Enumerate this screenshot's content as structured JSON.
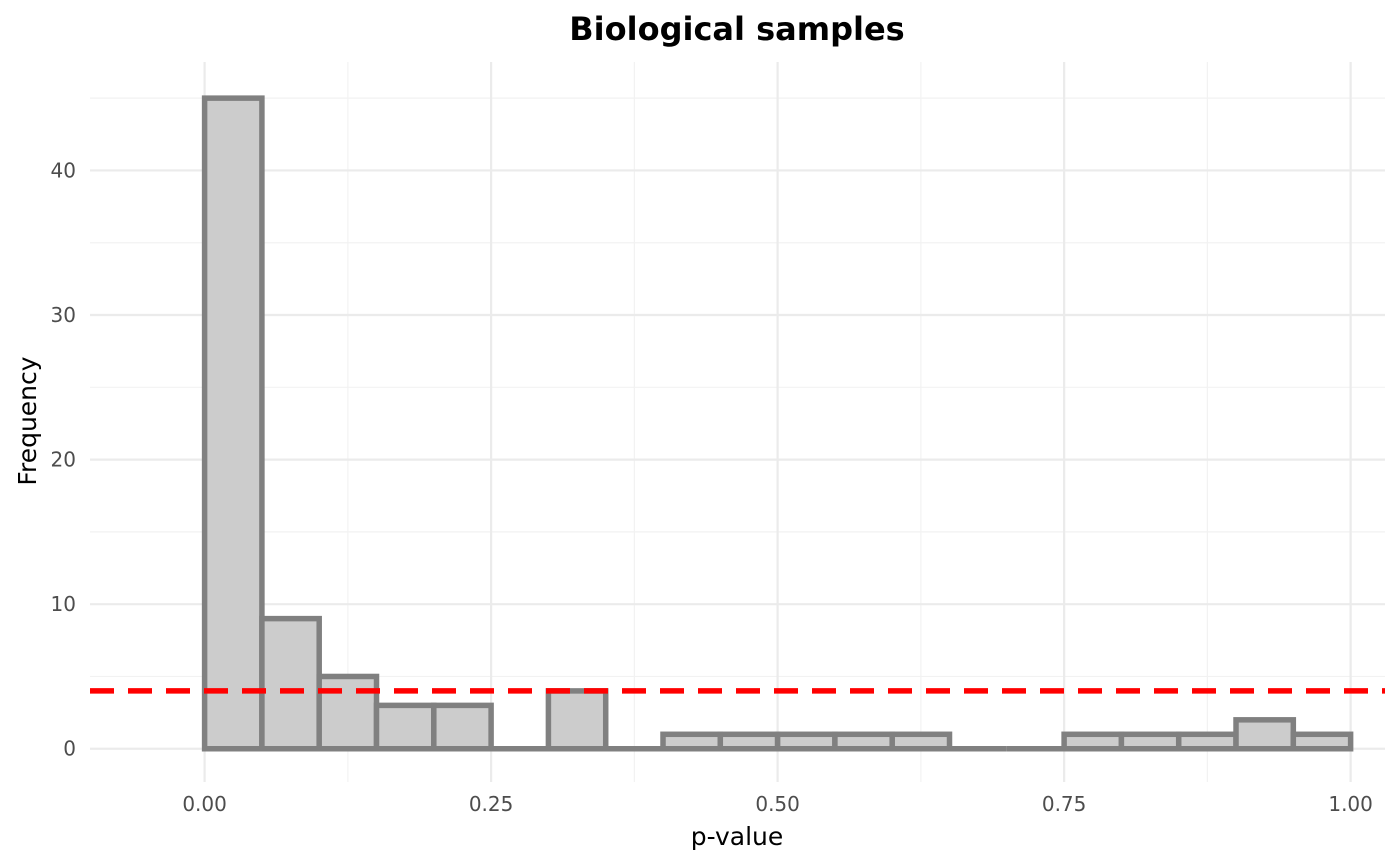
{
  "chart_data": {
    "type": "bar",
    "subtype": "histogram",
    "title": "Biological samples",
    "xlabel": "p-value",
    "ylabel": "Frequency",
    "xlim": [
      -0.1,
      1.03
    ],
    "ylim": [
      -2.3,
      47.5
    ],
    "x_ticks": [
      0.0,
      0.25,
      0.5,
      0.75,
      1.0
    ],
    "x_tick_labels": [
      "0.00",
      "0.25",
      "0.50",
      "0.75",
      "1.00"
    ],
    "y_ticks": [
      0,
      10,
      20,
      30,
      40
    ],
    "y_tick_labels": [
      "0",
      "10",
      "20",
      "30",
      "40"
    ],
    "grid": true,
    "bin_width": 0.05,
    "bins": [
      {
        "start": 0.0,
        "end": 0.05,
        "count": 45
      },
      {
        "start": 0.05,
        "end": 0.1,
        "count": 9
      },
      {
        "start": 0.1,
        "end": 0.15,
        "count": 5
      },
      {
        "start": 0.15,
        "end": 0.2,
        "count": 3
      },
      {
        "start": 0.2,
        "end": 0.25,
        "count": 3
      },
      {
        "start": 0.25,
        "end": 0.3,
        "count": 0
      },
      {
        "start": 0.3,
        "end": 0.35,
        "count": 4
      },
      {
        "start": 0.35,
        "end": 0.4,
        "count": 0
      },
      {
        "start": 0.4,
        "end": 0.45,
        "count": 1
      },
      {
        "start": 0.45,
        "end": 0.5,
        "count": 1
      },
      {
        "start": 0.5,
        "end": 0.55,
        "count": 1
      },
      {
        "start": 0.55,
        "end": 0.6,
        "count": 1
      },
      {
        "start": 0.6,
        "end": 0.65,
        "count": 1
      },
      {
        "start": 0.65,
        "end": 0.7,
        "count": 0
      },
      {
        "start": 0.7,
        "end": 0.75,
        "count": 0
      },
      {
        "start": 0.75,
        "end": 0.8,
        "count": 1
      },
      {
        "start": 0.8,
        "end": 0.85,
        "count": 1
      },
      {
        "start": 0.85,
        "end": 0.9,
        "count": 1
      },
      {
        "start": 0.9,
        "end": 0.95,
        "count": 2
      },
      {
        "start": 0.95,
        "end": 1.0,
        "count": 1
      }
    ],
    "reference_line": {
      "y": 4,
      "style": "dashed",
      "color": "#ff0000"
    },
    "colors": {
      "bar_fill": "#cccccc",
      "bar_outline": "#808080"
    }
  }
}
